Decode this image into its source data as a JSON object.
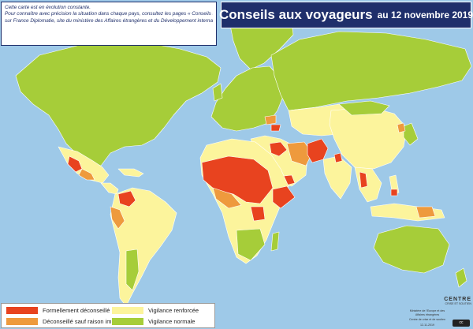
{
  "title": {
    "main": "Conseils aux voyageurs",
    "date": "au 12 novembre 2019"
  },
  "intro": {
    "lines": [
      "Cette carte est en évolution constante.",
      "Pour connaître avec précision la situation dans chaque pays, consultez les pages « Conseils aux Voyageurs »",
      "sur France Diplomatie, site du ministère des Affaires étrangères et du Développement international »."
    ]
  },
  "legend": {
    "items": [
      {
        "label": "Formellement déconseillé",
        "color": "#e8431f"
      },
      {
        "label": "Déconseillé sauf raison impérative",
        "color": "#ee9a3d"
      },
      {
        "label": "Vigilance renforcée",
        "color": "#fcf49c"
      },
      {
        "label": "Vigilance normale",
        "color": "#a6cd39"
      }
    ]
  },
  "credits": {
    "logo": "CENTRE",
    "logo_sub": "CRISE ET SOUTIEN",
    "ministry": "Ministère de l'Europe et des Affaires étrangères",
    "centre": "Centre de crise et de soutien",
    "date": "12-11-2019",
    "license": "cc"
  },
  "colors": {
    "ocean": "#9ec9e8",
    "border": "#ffffff",
    "title_bg": "#1f2f6b"
  }
}
